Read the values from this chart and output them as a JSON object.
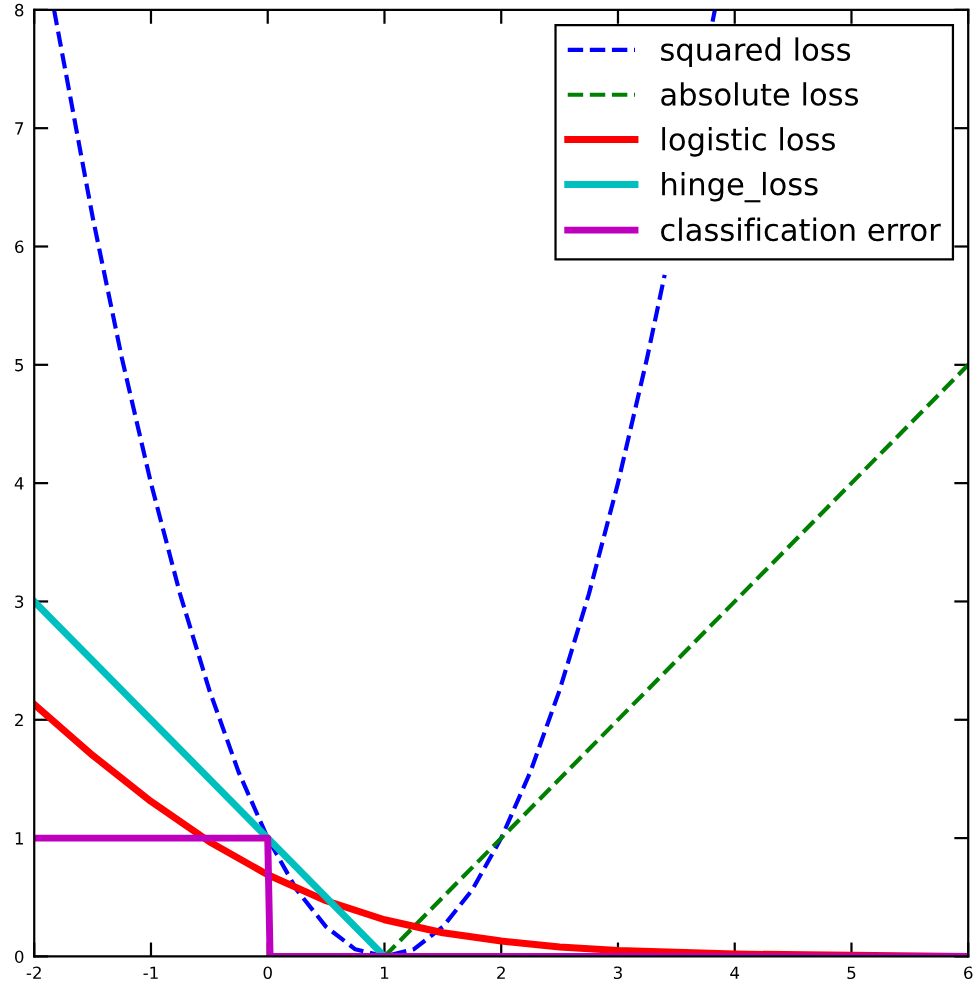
{
  "chart_data": {
    "type": "line",
    "xlim": [
      -2,
      6
    ],
    "ylim": [
      0,
      8
    ],
    "xticks": [
      -2,
      -1,
      0,
      1,
      2,
      3,
      4,
      5,
      6
    ],
    "yticks": [
      0,
      1,
      2,
      3,
      4,
      5,
      6,
      7,
      8
    ],
    "grid": false,
    "legend": "top right",
    "marker": "none",
    "series": [
      {
        "name": "squared loss",
        "color": "#0000ff",
        "line_style": "dashed",
        "x": [
          -1.83,
          -1.5,
          -1.25,
          -1,
          -0.75,
          -0.5,
          -0.25,
          0,
          0.25,
          0.5,
          0.75,
          1,
          1.25,
          1.5,
          1.75,
          2,
          2.25,
          2.5,
          2.75,
          3,
          3.25,
          3.4,
          3.5,
          3.81,
          3.83
        ],
        "values": [
          8,
          6.25,
          5.06,
          4,
          3.06,
          2.25,
          1.56,
          1,
          0.56,
          0.25,
          0.06,
          0,
          0.06,
          0.25,
          0.56,
          1,
          1.56,
          2.25,
          3.06,
          4,
          5.06,
          5.76,
          null,
          7.9,
          8
        ]
      },
      {
        "name": "absolute loss",
        "color": "#008000",
        "line_style": "dashed",
        "x": [
          1,
          6
        ],
        "values": [
          0,
          5
        ]
      },
      {
        "name": "logistic loss",
        "color": "#ff0000",
        "line_style": "solid",
        "x": [
          -2,
          -1.5,
          -1,
          -0.5,
          0,
          0.5,
          1,
          1.5,
          2,
          2.5,
          3,
          4,
          5,
          6
        ],
        "values": [
          2.13,
          1.7,
          1.31,
          0.97,
          0.69,
          0.47,
          0.31,
          0.2,
          0.13,
          0.08,
          0.05,
          0.02,
          0.01,
          0
        ]
      },
      {
        "name": "hinge_loss",
        "color": "#00bfbf",
        "line_style": "solid",
        "x": [
          -2,
          1
        ],
        "values": [
          3,
          0
        ]
      },
      {
        "name": "classification error",
        "color": "#bf00bf",
        "line_style": "solid",
        "x": [
          -2,
          0,
          0.02,
          6
        ],
        "values": [
          1,
          1,
          0,
          0
        ]
      }
    ]
  }
}
